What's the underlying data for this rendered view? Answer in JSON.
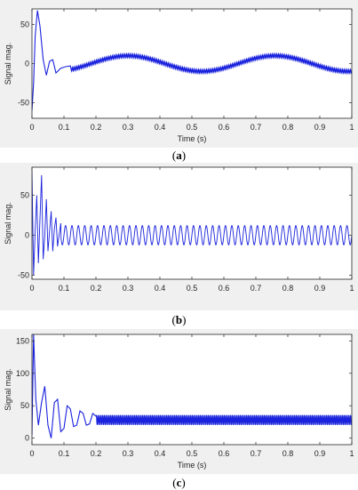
{
  "colors": {
    "signal": "#1a22dd",
    "axes": "#262626",
    "panel_bg": "#f0f0f0",
    "plot_bg": "#ffffff"
  },
  "chart_data": [
    {
      "type": "line",
      "caption": {
        "open": "(",
        "letter": "a",
        "close": ")"
      },
      "xlabel": "Time (s)",
      "ylabel": "Signal mag.",
      "xlim": [
        0,
        1
      ],
      "ylim": [
        -70,
        70
      ],
      "x_ticks": [
        "0",
        "0.1",
        "0.2",
        "0.3",
        "0.4",
        "0.5",
        "0.6",
        "0.7",
        "0.8",
        "0.9",
        "1"
      ],
      "y_ticks": [
        {
          "value": 50,
          "label": "50"
        },
        {
          "value": 0,
          "label": "0"
        },
        {
          "value": -50,
          "label": "-50"
        }
      ],
      "series": [
        {
          "steady_state": {
            "amplitude": 10,
            "period_s": 0.46,
            "peak_at_s": 0.3,
            "band_width": 5,
            "ripple_freq_hz": 50
          },
          "transient_points": [
            [
              0,
              -60
            ],
            [
              0.005,
              -25
            ],
            [
              0.01,
              35
            ],
            [
              0.017,
              68
            ],
            [
              0.025,
              48
            ],
            [
              0.035,
              5
            ],
            [
              0.045,
              -15
            ],
            [
              0.055,
              3
            ],
            [
              0.065,
              5
            ],
            [
              0.075,
              -12
            ],
            [
              0.09,
              -6
            ],
            [
              0.105,
              -4
            ],
            [
              0.12,
              -3
            ]
          ]
        }
      ]
    },
    {
      "type": "line",
      "caption": {
        "open": "(",
        "letter": "b",
        "close": ")"
      },
      "xlabel": "",
      "ylabel": "Signal mag.",
      "xlim": [
        0,
        1
      ],
      "ylim": [
        -55,
        85
      ],
      "x_ticks": [
        "0",
        "0.1",
        "0.2",
        "0.3",
        "0.4",
        "0.5",
        "0.6",
        "0.7",
        "0.8",
        "0.9",
        "1"
      ],
      "y_ticks": [
        {
          "value": 50,
          "label": "50"
        },
        {
          "value": 0,
          "label": "0"
        },
        {
          "value": -50,
          "label": "-50"
        }
      ],
      "series": [
        {
          "steady_state": {
            "amplitude": 12,
            "offset": 0,
            "freq_hz": 50
          },
          "transient_points": [
            [
              0,
              80
            ],
            [
              0.005,
              -50
            ],
            [
              0.01,
              5
            ],
            [
              0.015,
              50
            ],
            [
              0.02,
              -35
            ],
            [
              0.025,
              20
            ],
            [
              0.03,
              75
            ],
            [
              0.035,
              -30
            ],
            [
              0.04,
              0
            ],
            [
              0.045,
              45
            ],
            [
              0.05,
              -20
            ],
            [
              0.055,
              5
            ],
            [
              0.06,
              30
            ],
            [
              0.065,
              -20
            ],
            [
              0.07,
              8
            ],
            [
              0.075,
              22
            ],
            [
              0.08,
              -14
            ],
            [
              0.09,
              15
            ]
          ]
        }
      ]
    },
    {
      "type": "line",
      "caption": {
        "open": "(",
        "letter": "c",
        "close": ")"
      },
      "xlabel": "Time (s)",
      "ylabel": "Signal mag.",
      "xlim": [
        0,
        1
      ],
      "ylim": [
        -10,
        160
      ],
      "x_ticks": [
        "0",
        "0.1",
        "0.2",
        "0.3",
        "0.4",
        "0.5",
        "0.6",
        "0.7",
        "0.8",
        "0.9",
        "1"
      ],
      "y_ticks": [
        {
          "value": 150,
          "label": "150"
        },
        {
          "value": 100,
          "label": "100"
        },
        {
          "value": 50,
          "label": "50"
        },
        {
          "value": 0,
          "label": "0"
        }
      ],
      "series": [
        {
          "steady_state": {
            "mean": 28,
            "band_low": 20,
            "band_high": 36,
            "ripple_freq_hz": 50
          },
          "transient_points": [
            [
              0,
              5
            ],
            [
              0.005,
              160
            ],
            [
              0.012,
              60
            ],
            [
              0.02,
              20
            ],
            [
              0.03,
              55
            ],
            [
              0.04,
              80
            ],
            [
              0.05,
              20
            ],
            [
              0.06,
              0
            ],
            [
              0.07,
              55
            ],
            [
              0.08,
              60
            ],
            [
              0.09,
              10
            ],
            [
              0.1,
              15
            ],
            [
              0.11,
              50
            ],
            [
              0.12,
              45
            ],
            [
              0.13,
              18
            ],
            [
              0.14,
              20
            ],
            [
              0.15,
              42
            ],
            [
              0.16,
              38
            ],
            [
              0.17,
              20
            ],
            [
              0.18,
              22
            ],
            [
              0.19,
              38
            ],
            [
              0.2,
              34
            ]
          ]
        }
      ]
    }
  ]
}
